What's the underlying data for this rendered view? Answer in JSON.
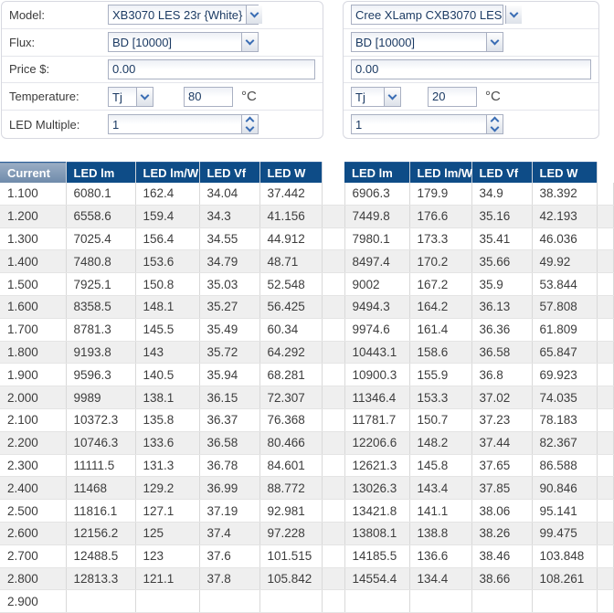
{
  "form": {
    "labels": {
      "model": "Model:",
      "flux": "Flux:",
      "price": "Price $:",
      "temperature": "Temperature:",
      "led_multiple": "LED Multiple:"
    },
    "unit_celsius": "°C",
    "left": {
      "model": "XB3070 LES 23r {White}",
      "flux": "BD [10000]",
      "price": "0.00",
      "temp_mode": "Tj",
      "temp_value": "80",
      "led_multiple": "1"
    },
    "right": {
      "model": "Cree XLamp CXB3070 LES",
      "flux": "BD [10000]",
      "price": "0.00",
      "temp_mode": "Tj",
      "temp_value": "20",
      "led_multiple": "1"
    }
  },
  "table": {
    "current_header": "Current",
    "led_headers": [
      "LED lm",
      "LED lm/W",
      "LED Vf",
      "LED W"
    ],
    "rows": [
      {
        "current": "1.100",
        "left": [
          "6080.1",
          "162.4",
          "34.04",
          "37.442"
        ],
        "right": [
          "6906.3",
          "179.9",
          "34.9",
          "38.392"
        ]
      },
      {
        "current": "1.200",
        "left": [
          "6558.6",
          "159.4",
          "34.3",
          "41.156"
        ],
        "right": [
          "7449.8",
          "176.6",
          "35.16",
          "42.193"
        ]
      },
      {
        "current": "1.300",
        "left": [
          "7025.4",
          "156.4",
          "34.55",
          "44.912"
        ],
        "right": [
          "7980.1",
          "173.3",
          "35.41",
          "46.036"
        ]
      },
      {
        "current": "1.400",
        "left": [
          "7480.8",
          "153.6",
          "34.79",
          "48.71"
        ],
        "right": [
          "8497.4",
          "170.2",
          "35.66",
          "49.92"
        ]
      },
      {
        "current": "1.500",
        "left": [
          "7925.1",
          "150.8",
          "35.03",
          "52.548"
        ],
        "right": [
          "9002",
          "167.2",
          "35.9",
          "53.844"
        ]
      },
      {
        "current": "1.600",
        "left": [
          "8358.5",
          "148.1",
          "35.27",
          "56.425"
        ],
        "right": [
          "9494.3",
          "164.2",
          "36.13",
          "57.808"
        ]
      },
      {
        "current": "1.700",
        "left": [
          "8781.3",
          "145.5",
          "35.49",
          "60.34"
        ],
        "right": [
          "9974.6",
          "161.4",
          "36.36",
          "61.809"
        ]
      },
      {
        "current": "1.800",
        "left": [
          "9193.8",
          "143",
          "35.72",
          "64.292"
        ],
        "right": [
          "10443.1",
          "158.6",
          "36.58",
          "65.847"
        ]
      },
      {
        "current": "1.900",
        "left": [
          "9596.3",
          "140.5",
          "35.94",
          "68.281"
        ],
        "right": [
          "10900.3",
          "155.9",
          "36.8",
          "69.923"
        ]
      },
      {
        "current": "2.000",
        "left": [
          "9989",
          "138.1",
          "36.15",
          "72.307"
        ],
        "right": [
          "11346.4",
          "153.3",
          "37.02",
          "74.035"
        ]
      },
      {
        "current": "2.100",
        "left": [
          "10372.3",
          "135.8",
          "36.37",
          "76.368"
        ],
        "right": [
          "11781.7",
          "150.7",
          "37.23",
          "78.183"
        ]
      },
      {
        "current": "2.200",
        "left": [
          "10746.3",
          "133.6",
          "36.58",
          "80.466"
        ],
        "right": [
          "12206.6",
          "148.2",
          "37.44",
          "82.367"
        ]
      },
      {
        "current": "2.300",
        "left": [
          "11111.5",
          "131.3",
          "36.78",
          "84.601"
        ],
        "right": [
          "12621.3",
          "145.8",
          "37.65",
          "86.588"
        ]
      },
      {
        "current": "2.400",
        "left": [
          "11468",
          "129.2",
          "36.99",
          "88.772"
        ],
        "right": [
          "13026.3",
          "143.4",
          "37.85",
          "90.846"
        ]
      },
      {
        "current": "2.500",
        "left": [
          "11816.1",
          "127.1",
          "37.19",
          "92.981"
        ],
        "right": [
          "13421.8",
          "141.1",
          "38.06",
          "95.141"
        ]
      },
      {
        "current": "2.600",
        "left": [
          "12156.2",
          "125",
          "37.4",
          "97.228"
        ],
        "right": [
          "13808.1",
          "138.8",
          "38.26",
          "99.475"
        ]
      },
      {
        "current": "2.700",
        "left": [
          "12488.5",
          "123",
          "37.6",
          "101.515"
        ],
        "right": [
          "14185.5",
          "136.6",
          "38.46",
          "103.848"
        ]
      },
      {
        "current": "2.800",
        "left": [
          "12813.3",
          "121.1",
          "37.8",
          "105.842"
        ],
        "right": [
          "14554.4",
          "134.4",
          "38.66",
          "108.261"
        ]
      },
      {
        "current": "2.900",
        "left": [
          "",
          "",
          "",
          ""
        ],
        "right": [
          "",
          "",
          "",
          ""
        ]
      }
    ]
  },
  "colors": {
    "header_bg": "#0e4c87",
    "current_header_top": "#9aadc4",
    "current_header_bottom": "#6e8aaa",
    "row_stripe": "#efefef",
    "field_text": "#1b3a63",
    "chevron_blue": "#3a6db4"
  }
}
